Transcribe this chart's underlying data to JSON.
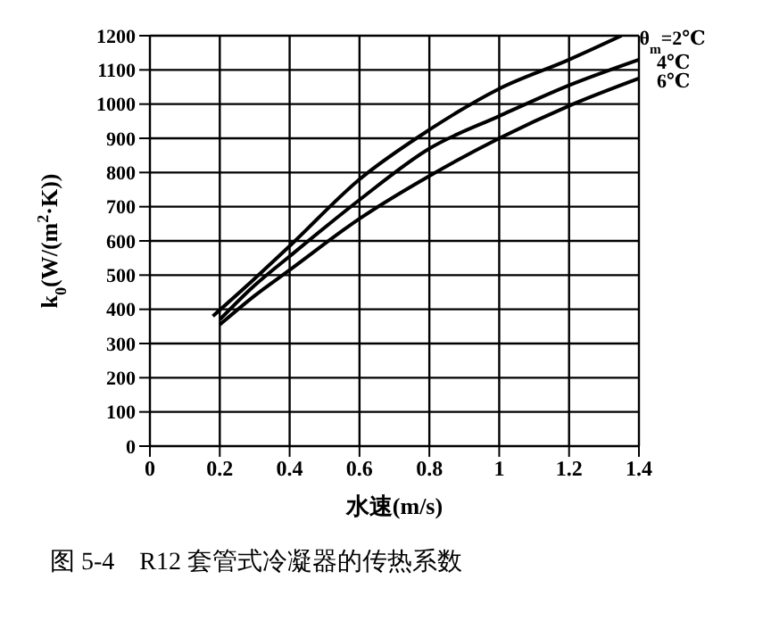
{
  "chart_data": {
    "type": "line",
    "xlabel": "水速(m/s)",
    "ylabel": "k$_{0}$(W/(m$^{2}$·K))",
    "annotations": [
      "图 5-4　R12 套管式冷凝器的传热系数"
    ],
    "series": [
      {
        "name": "θ$_{m}$=2℃",
        "color": "#000000",
        "x": [
          0.18,
          0.3,
          0.4,
          0.6,
          0.8,
          1.0,
          1.2,
          1.35
        ],
        "values": [
          380,
          490,
          585,
          780,
          925,
          1045,
          1130,
          1200
        ]
      },
      {
        "name": "4℃",
        "color": "#000000",
        "x": [
          0.2,
          0.3,
          0.4,
          0.6,
          0.8,
          1.0,
          1.2,
          1.4
        ],
        "values": [
          370,
          470,
          555,
          720,
          870,
          965,
          1055,
          1130
        ]
      },
      {
        "name": "6℃",
        "color": "#000000",
        "x": [
          0.2,
          0.3,
          0.4,
          0.6,
          0.8,
          1.0,
          1.2,
          1.4
        ],
        "values": [
          355,
          440,
          515,
          665,
          790,
          900,
          995,
          1075
        ]
      }
    ],
    "xlim": [
      0,
      1.4
    ],
    "xticks": [
      0,
      0.2,
      0.4,
      0.6,
      0.8,
      1.0,
      1.2,
      1.4
    ],
    "ylim": [
      0,
      1200
    ],
    "yticks": [
      0,
      100,
      200,
      300,
      400,
      500,
      600,
      700,
      800,
      900,
      1000,
      1100,
      1200
    ],
    "grid": true,
    "marker": "none",
    "line_style": "solid",
    "legend": false
  }
}
